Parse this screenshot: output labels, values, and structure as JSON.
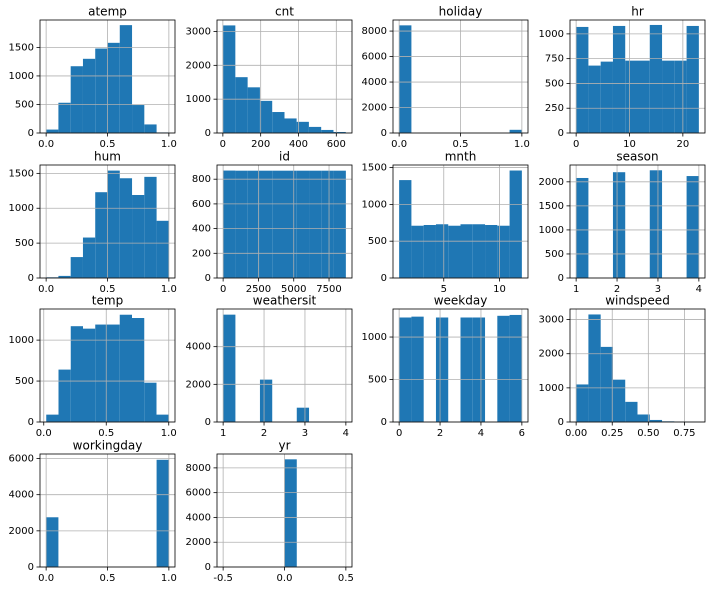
{
  "chart_data": [
    {
      "type": "histogram",
      "title": "atemp",
      "color": "#1f77b4",
      "grid": true,
      "bins": [
        0,
        0.1,
        0.2,
        0.3,
        0.4,
        0.5,
        0.6,
        0.7,
        0.8,
        0.9,
        1.0
      ],
      "values": [
        60,
        530,
        1170,
        1300,
        1480,
        1580,
        1890,
        490,
        150,
        10
      ],
      "xlim": [
        -0.05,
        1.05
      ],
      "ylim": [
        0,
        1980
      ],
      "xticks": [
        {
          "value": 0,
          "label": "0.0"
        },
        0.5,
        {
          "value": 1,
          "label": "1.0"
        }
      ],
      "yticks": [
        0,
        500,
        1000,
        1500
      ]
    },
    {
      "type": "histogram",
      "title": "cnt",
      "color": "#1f77b4",
      "grid": true,
      "bins": [
        1,
        66,
        131,
        196,
        261,
        326,
        390,
        455,
        520,
        585,
        650
      ],
      "values": [
        3180,
        1650,
        1350,
        950,
        620,
        430,
        330,
        180,
        90,
        30
      ],
      "xlim": [
        -31,
        683
      ],
      "ylim": [
        0,
        3340
      ],
      "xticks": [
        0,
        200,
        400,
        600
      ],
      "yticks": [
        0,
        1000,
        2000,
        3000
      ]
    },
    {
      "type": "histogram",
      "title": "holiday",
      "color": "#1f77b4",
      "grid": true,
      "bins": [
        0,
        0.1,
        0.2,
        0.3,
        0.4,
        0.5,
        0.6,
        0.7,
        0.8,
        0.9,
        1.0
      ],
      "values": [
        8450,
        0,
        0,
        0,
        0,
        0,
        0,
        0,
        0,
        250
      ],
      "xlim": [
        -0.05,
        1.05
      ],
      "ylim": [
        0,
        8870
      ],
      "xticks": [
        {
          "value": 0,
          "label": "0.0"
        },
        0.5,
        {
          "value": 1,
          "label": "1.0"
        }
      ],
      "yticks": [
        0,
        2000,
        4000,
        6000,
        8000
      ]
    },
    {
      "type": "histogram",
      "title": "hr",
      "color": "#1f77b4",
      "grid": true,
      "bins": [
        0,
        2.3,
        4.6,
        6.9,
        9.2,
        11.5,
        13.8,
        16.1,
        18.4,
        20.7,
        23
      ],
      "values": [
        1070,
        680,
        720,
        1080,
        730,
        730,
        1090,
        730,
        730,
        1080
      ],
      "xlim": [
        -1.15,
        24.15
      ],
      "ylim": [
        0,
        1140
      ],
      "xticks": [
        0,
        10,
        20
      ],
      "yticks": [
        0,
        250,
        500,
        750,
        1000
      ]
    },
    {
      "type": "histogram",
      "title": "hum",
      "color": "#1f77b4",
      "grid": true,
      "bins": [
        0,
        0.1,
        0.2,
        0.3,
        0.4,
        0.5,
        0.6,
        0.7,
        0.8,
        0.9,
        1.0
      ],
      "values": [
        10,
        30,
        300,
        580,
        1230,
        1540,
        1430,
        1190,
        1450,
        820
      ],
      "xlim": [
        -0.05,
        1.05
      ],
      "ylim": [
        0,
        1620
      ],
      "xticks": [
        {
          "value": 0,
          "label": "0.0"
        },
        0.5,
        {
          "value": 1,
          "label": "1.0"
        }
      ],
      "yticks": [
        0,
        500,
        1000,
        1500
      ]
    },
    {
      "type": "histogram",
      "title": "id",
      "color": "#1f77b4",
      "grid": true,
      "bins": [
        1,
        870,
        1739,
        2608,
        3477,
        4346,
        5215,
        6084,
        6953,
        7822,
        8691
      ],
      "values": [
        870,
        869,
        869,
        869,
        869,
        869,
        869,
        869,
        869,
        869
      ],
      "xlim": [
        -434,
        9126
      ],
      "ylim": [
        0,
        915
      ],
      "xticks": [
        0,
        2500,
        5000,
        7500
      ],
      "yticks": [
        0,
        200,
        400,
        600,
        800
      ]
    },
    {
      "type": "histogram",
      "title": "mnth",
      "color": "#1f77b4",
      "grid": true,
      "bins": [
        1,
        2.1,
        3.2,
        4.3,
        5.4,
        6.5,
        7.6,
        8.7,
        9.8,
        10.9,
        12
      ],
      "values": [
        1330,
        710,
        720,
        730,
        710,
        730,
        730,
        720,
        710,
        1460
      ],
      "xlim": [
        0.45,
        12.55
      ],
      "ylim": [
        0,
        1535
      ],
      "xticks": [
        5,
        10
      ],
      "yticks": [
        0,
        500,
        1000,
        1500
      ]
    },
    {
      "type": "histogram",
      "title": "season",
      "color": "#1f77b4",
      "grid": true,
      "bins": [
        1,
        1.3,
        1.6,
        1.9,
        2.2,
        2.5,
        2.8,
        3.1,
        3.4,
        3.7,
        4
      ],
      "values": [
        2080,
        0,
        0,
        2200,
        0,
        0,
        2240,
        0,
        0,
        2120
      ],
      "xlim": [
        0.85,
        4.15
      ],
      "ylim": [
        0,
        2350
      ],
      "xticks": [
        1,
        2,
        3,
        4
      ],
      "yticks": [
        0,
        500,
        1000,
        1500,
        2000
      ]
    },
    {
      "type": "histogram",
      "title": "temp",
      "color": "#1f77b4",
      "grid": true,
      "bins": [
        0.02,
        0.118,
        0.216,
        0.314,
        0.412,
        0.51,
        0.608,
        0.706,
        0.804,
        0.902,
        1.0
      ],
      "values": [
        90,
        640,
        1170,
        1140,
        1190,
        1190,
        1310,
        1270,
        480,
        90
      ],
      "xlim": [
        -0.03,
        1.05
      ],
      "ylim": [
        0,
        1380
      ],
      "xticks": [
        {
          "value": 0,
          "label": "0.0"
        },
        0.5,
        {
          "value": 1,
          "label": "1.0"
        }
      ],
      "yticks": [
        0,
        500,
        1000
      ]
    },
    {
      "type": "histogram",
      "title": "weathersit",
      "color": "#1f77b4",
      "grid": true,
      "bins": [
        1,
        1.3,
        1.6,
        1.9,
        2.2,
        2.5,
        2.8,
        3.1,
        3.4,
        3.7,
        4
      ],
      "values": [
        5700,
        0,
        0,
        2250,
        0,
        0,
        760,
        0,
        0,
        3
      ],
      "xlim": [
        0.85,
        4.15
      ],
      "ylim": [
        0,
        6000
      ],
      "xticks": [
        1,
        2,
        3,
        4
      ],
      "yticks": [
        0,
        2000,
        4000
      ]
    },
    {
      "type": "histogram",
      "title": "weekday",
      "color": "#1f77b4",
      "grid": true,
      "bins": [
        0,
        0.6,
        1.2,
        1.8,
        2.4,
        3,
        3.6,
        4.2,
        4.8,
        5.4,
        6
      ],
      "values": [
        1230,
        1240,
        0,
        1230,
        0,
        1230,
        1230,
        0,
        1250,
        1260
      ],
      "xlim": [
        -0.3,
        6.3
      ],
      "ylim": [
        0,
        1330
      ],
      "xticks": [
        0,
        2,
        4,
        6
      ],
      "yticks": [
        0,
        500,
        1000
      ]
    },
    {
      "type": "histogram",
      "title": "windspeed",
      "color": "#1f77b4",
      "grid": true,
      "bins": [
        0,
        0.085,
        0.17,
        0.255,
        0.34,
        0.425,
        0.51,
        0.595,
        0.68,
        0.765,
        0.85
      ],
      "values": [
        1100,
        3150,
        2200,
        1240,
        590,
        220,
        60,
        20,
        10,
        2
      ],
      "xlim": [
        -0.0425,
        0.8925
      ],
      "ylim": [
        0,
        3310
      ],
      "xticks": [
        {
          "value": 0,
          "label": "0.00"
        },
        0.25,
        {
          "value": 0.5,
          "label": "0.50"
        },
        0.75
      ],
      "yticks": [
        0,
        1000,
        2000,
        3000
      ]
    },
    {
      "type": "histogram",
      "title": "workingday",
      "color": "#1f77b4",
      "grid": true,
      "bins": [
        0,
        0.1,
        0.2,
        0.3,
        0.4,
        0.5,
        0.6,
        0.7,
        0.8,
        0.9,
        1.0
      ],
      "values": [
        2750,
        0,
        0,
        0,
        0,
        0,
        0,
        0,
        0,
        5930
      ],
      "xlim": [
        -0.05,
        1.05
      ],
      "ylim": [
        0,
        6250
      ],
      "xticks": [
        {
          "value": 0,
          "label": "0.0"
        },
        0.5,
        {
          "value": 1,
          "label": "1.0"
        }
      ],
      "yticks": [
        0,
        2000,
        4000,
        6000
      ]
    },
    {
      "type": "histogram",
      "title": "yr",
      "color": "#1f77b4",
      "grid": true,
      "bins": [
        -0.5,
        -0.4,
        -0.3,
        -0.2,
        -0.1,
        0,
        0.1,
        0.2,
        0.3,
        0.4,
        0.5
      ],
      "values": [
        0,
        0,
        0,
        0,
        0,
        8690,
        0,
        0,
        0,
        0
      ],
      "xlim": [
        -0.55,
        0.55
      ],
      "ylim": [
        0,
        9120
      ],
      "xticks": [
        -0.5,
        {
          "value": 0,
          "label": "0.0"
        },
        0.5
      ],
      "yticks": [
        0,
        2000,
        4000,
        6000,
        8000
      ]
    }
  ]
}
